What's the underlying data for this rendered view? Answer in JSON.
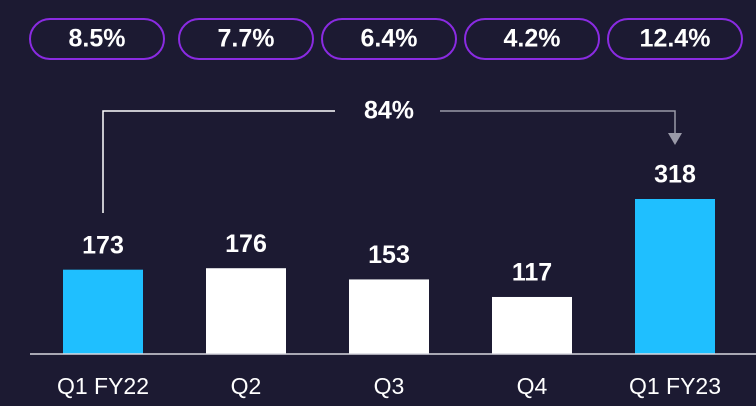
{
  "chart_data": {
    "type": "bar",
    "categories": [
      "Q1 FY22",
      "Q2",
      "Q3",
      "Q4",
      "Q1 FY23"
    ],
    "values": [
      173,
      176,
      153,
      117,
      318
    ],
    "colors": [
      "#1fbfff",
      "#ffffff",
      "#ffffff",
      "#ffffff",
      "#1fbfff"
    ],
    "rates": [
      "8.5%",
      "7.7%",
      "6.4%",
      "4.2%",
      "12.4%"
    ],
    "growth_label": "84%"
  }
}
